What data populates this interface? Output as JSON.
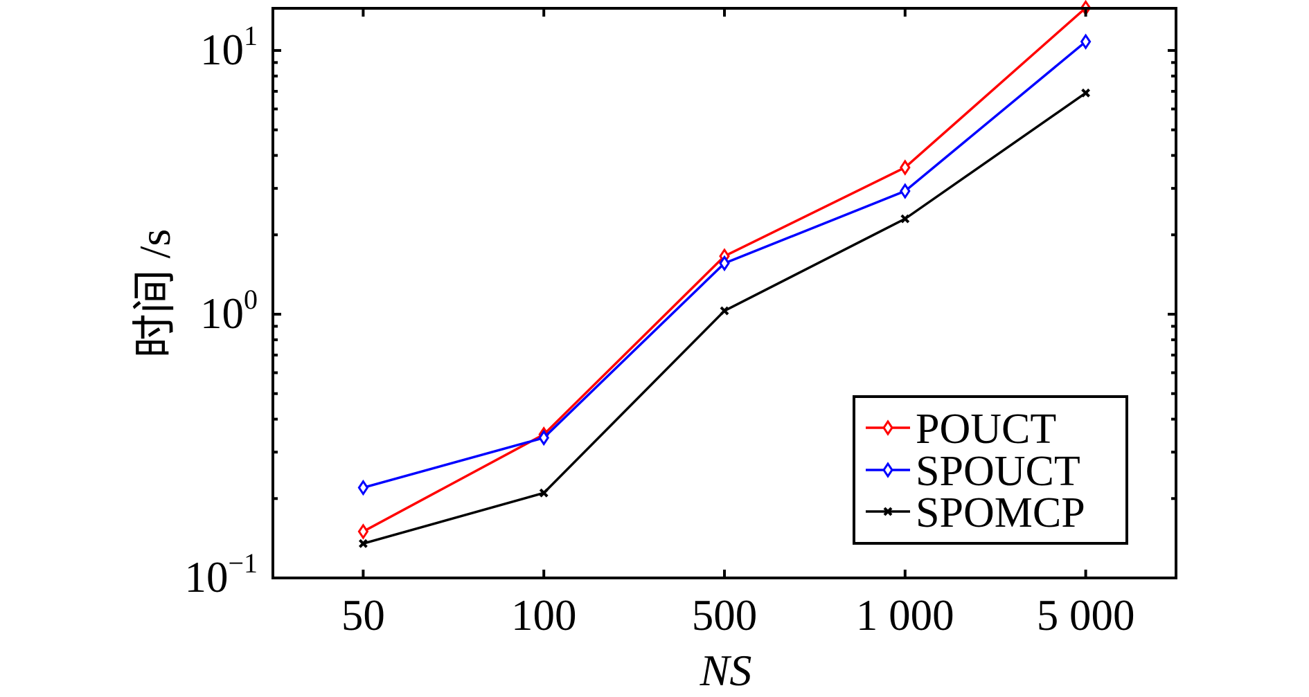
{
  "chart_data": {
    "type": "line",
    "title": "",
    "xlabel": "NS",
    "ylabel": "时间 /s",
    "yscale": "log",
    "ylim": [
      0.1,
      14.45
    ],
    "categories": [
      "50",
      "100",
      "500",
      "1 000",
      "5 000"
    ],
    "yticks": [
      {
        "value": 0.1,
        "base": "10",
        "exp": "−1"
      },
      {
        "value": 1,
        "base": "10",
        "exp": "0"
      },
      {
        "value": 10,
        "base": "10",
        "exp": "1"
      }
    ],
    "grid": false,
    "legend_position": "bottom-right",
    "series": [
      {
        "name": "POUCT",
        "color": "#ff0000",
        "marker": "diamond",
        "values": [
          0.15,
          0.35,
          1.66,
          3.6,
          14.5
        ]
      },
      {
        "name": "SPOUCT",
        "color": "#0000ff",
        "marker": "diamond",
        "values": [
          0.22,
          0.34,
          1.56,
          2.93,
          10.8
        ]
      },
      {
        "name": "SPOMCP",
        "color": "#000000",
        "marker": "x",
        "values": [
          0.135,
          0.21,
          1.03,
          2.3,
          6.9
        ]
      }
    ]
  }
}
